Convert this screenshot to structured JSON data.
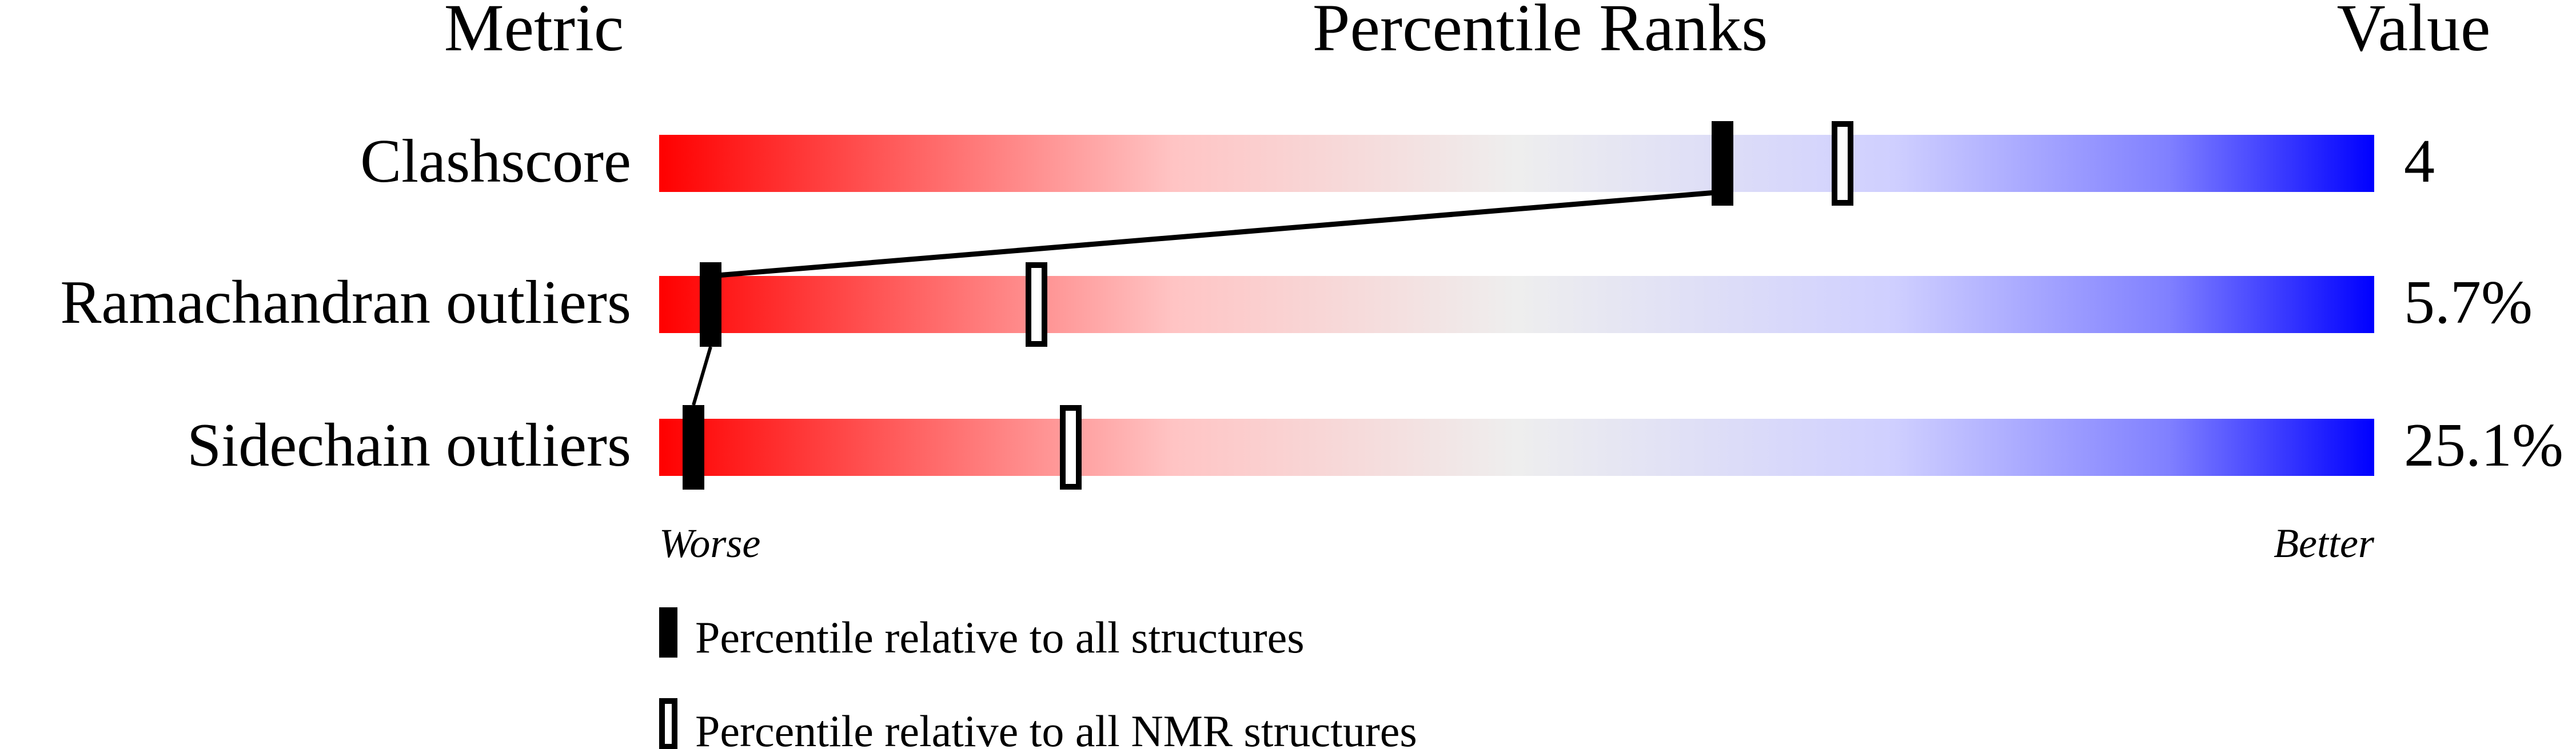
{
  "header": {
    "metric": "Metric",
    "percentile_ranks": "Percentile Ranks",
    "value": "Value"
  },
  "chart_data": {
    "type": "percentile-slider",
    "xlim": [
      0,
      100
    ],
    "axis_left_label": "Worse",
    "axis_right_label": "Better",
    "gradient_colors": [
      "#ff0000",
      "#eeeeee",
      "#0000ff"
    ],
    "metrics": [
      {
        "name": "Clashscore",
        "value": "4",
        "percentile_all": 62,
        "percentile_nmr": 69
      },
      {
        "name": "Ramachandran outliers",
        "value": "5.7%",
        "percentile_all": 3,
        "percentile_nmr": 22
      },
      {
        "name": "Sidechain outliers",
        "value": "25.1%",
        "percentile_all": 2,
        "percentile_nmr": 24
      }
    ],
    "legend": [
      {
        "marker": "filled",
        "label": "Percentile relative to all structures"
      },
      {
        "marker": "open",
        "label": "Percentile relative to all NMR structures"
      }
    ]
  }
}
